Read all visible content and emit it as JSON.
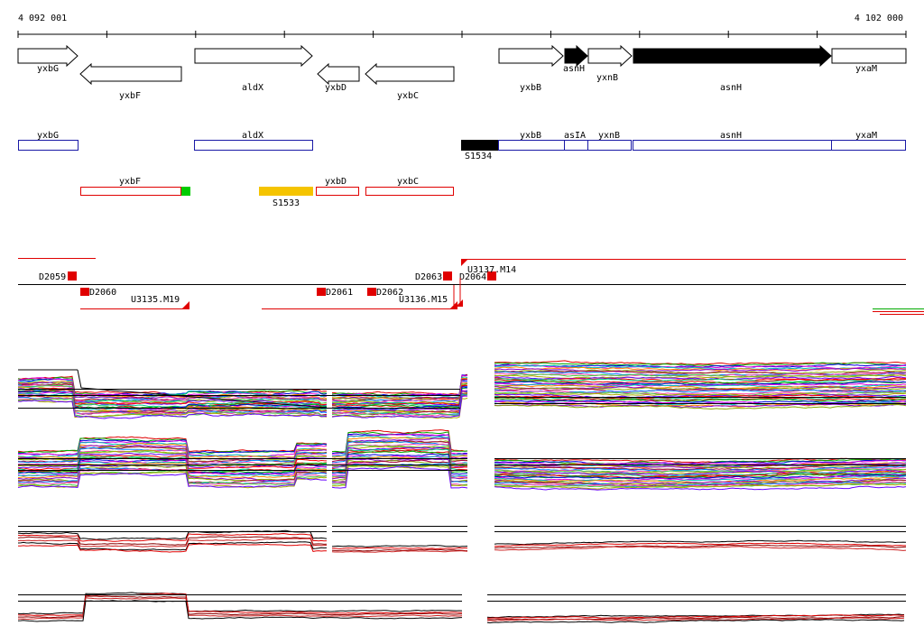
{
  "coords": {
    "start": "4 092 001",
    "end": "4 102 000"
  },
  "genes_top": [
    {
      "name": "yxbG",
      "strand": "+",
      "filled": false
    },
    {
      "name": "yxbF",
      "strand": "-",
      "filled": false
    },
    {
      "name": "aldX",
      "strand": "+",
      "filled": false
    },
    {
      "name": "yxbD",
      "strand": "-",
      "filled": false
    },
    {
      "name": "yxbC",
      "strand": "-",
      "filled": false
    },
    {
      "name": "yxbB",
      "strand": "+",
      "filled": false
    },
    {
      "name": "asnH",
      "strand": "+",
      "filled": true
    },
    {
      "name": "yxnB",
      "strand": "+",
      "filled": false
    },
    {
      "name": "asnH",
      "strand": "+",
      "filled": true
    },
    {
      "name": "yxaM",
      "strand": "+",
      "filled": false
    }
  ],
  "blue_boxes": [
    {
      "name": "yxbG"
    },
    {
      "name": "aldX"
    },
    {
      "name": "yxbB"
    },
    {
      "name": "asIA"
    },
    {
      "name": "yxnB"
    },
    {
      "name": "asnH"
    },
    {
      "name": "yxaM"
    }
  ],
  "black_feature": {
    "name": "S1534"
  },
  "red_boxes": [
    {
      "name": "yxbF"
    },
    {
      "name": "yxbD"
    },
    {
      "name": "yxbC"
    }
  ],
  "yellow_feature": {
    "name": "S1533"
  },
  "tiles_upper": [
    {
      "name": "D2059"
    },
    {
      "name": "D2063"
    },
    {
      "name": "D2064"
    }
  ],
  "tiles_lower": [
    {
      "name": "D2060"
    },
    {
      "name": "D2061"
    },
    {
      "name": "D2062"
    }
  ],
  "transcripts": [
    {
      "name": "U3137.M14"
    },
    {
      "name": "U3135.M19"
    },
    {
      "name": "U3136.M15"
    }
  ],
  "colors": {
    "gene_outline": "#000000",
    "blue": "#1a1aa6",
    "red": "#e00000",
    "yellow": "#f5c400",
    "green": "#00cc00",
    "black": "#000000"
  }
}
